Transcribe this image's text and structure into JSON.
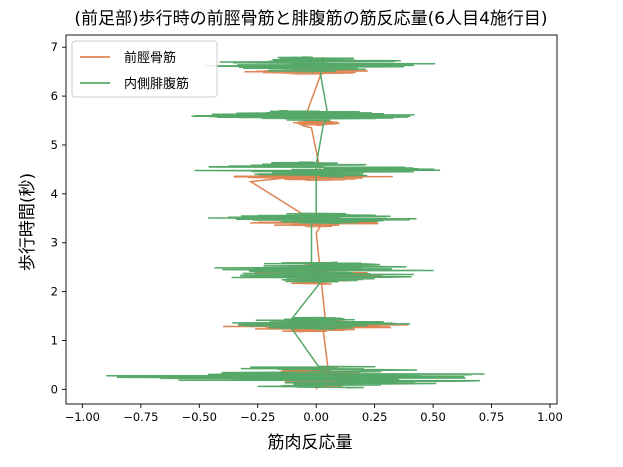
{
  "chart_data": {
    "type": "line",
    "title": "(前足部)歩行時の前脛骨筋と腓腹筋の筋反応量(6人目4施行目)",
    "xlabel": "筋肉反応量",
    "ylabel": "歩行時間(秒)",
    "xlim": [
      -1.07,
      1.03
    ],
    "ylim": [
      -0.3,
      7.25
    ],
    "xticks": [
      -1.0,
      -0.75,
      -0.5,
      -0.25,
      0.0,
      0.25,
      0.5,
      0.75,
      1.0
    ],
    "xtick_labels": [
      "−1.00",
      "−0.75",
      "−0.50",
      "−0.25",
      "0.00",
      "0.25",
      "0.50",
      "0.75",
      "1.00"
    ],
    "yticks": [
      0,
      1,
      2,
      3,
      4,
      5,
      6,
      7
    ],
    "ytick_labels": [
      "0",
      "1",
      "2",
      "3",
      "4",
      "5",
      "6",
      "7"
    ],
    "grid": false,
    "legend_position": "top-left",
    "series": [
      {
        "name": "前脛骨筋",
        "color": "#dd8452",
        "burst_centers": [
          0.25,
          1.3,
          2.35,
          3.4,
          4.35,
          5.45,
          6.5
        ],
        "burst_halfwidths": [
          0.2,
          0.12,
          0.2,
          0.07,
          0.07,
          0.05,
          0.05
        ],
        "amplitudes": [
          0.35,
          0.45,
          0.33,
          0.33,
          0.42,
          0.12,
          0.33
        ],
        "path": [
          [
            0.0,
            0.0
          ],
          [
            0.05,
            0.45
          ],
          [
            0.03,
            1.2
          ],
          [
            0.04,
            1.4
          ],
          [
            0.02,
            2.3
          ],
          [
            0.0,
            3.2
          ],
          [
            0.02,
            3.35
          ],
          [
            -0.28,
            4.25
          ],
          [
            0.02,
            4.4
          ],
          [
            -0.02,
            5.35
          ],
          [
            -0.06,
            5.4
          ],
          [
            0.02,
            6.45
          ],
          [
            0.03,
            6.8
          ]
        ]
      },
      {
        "name": "内側腓腹筋",
        "color": "#55a868",
        "burst_centers": [
          0.25,
          1.35,
          2.4,
          3.5,
          4.5,
          5.6,
          6.65
        ],
        "burst_halfwidths": [
          0.22,
          0.12,
          0.2,
          0.1,
          0.15,
          0.1,
          0.15
        ],
        "amplitudes": [
          1.0,
          0.45,
          0.65,
          0.55,
          0.62,
          0.6,
          0.6
        ],
        "path": [
          [
            0.02,
            0.05
          ],
          [
            0.02,
            0.4
          ],
          [
            -0.12,
            1.35
          ],
          [
            0.02,
            2.2
          ],
          [
            -0.02,
            2.5
          ],
          [
            -0.02,
            3.45
          ],
          [
            0.0,
            3.6
          ],
          [
            0.0,
            4.35
          ],
          [
            0.0,
            4.6
          ],
          [
            0.03,
            5.4
          ],
          [
            0.05,
            5.6
          ],
          [
            0.02,
            6.4
          ],
          [
            0.02,
            6.6
          ]
        ]
      }
    ]
  }
}
